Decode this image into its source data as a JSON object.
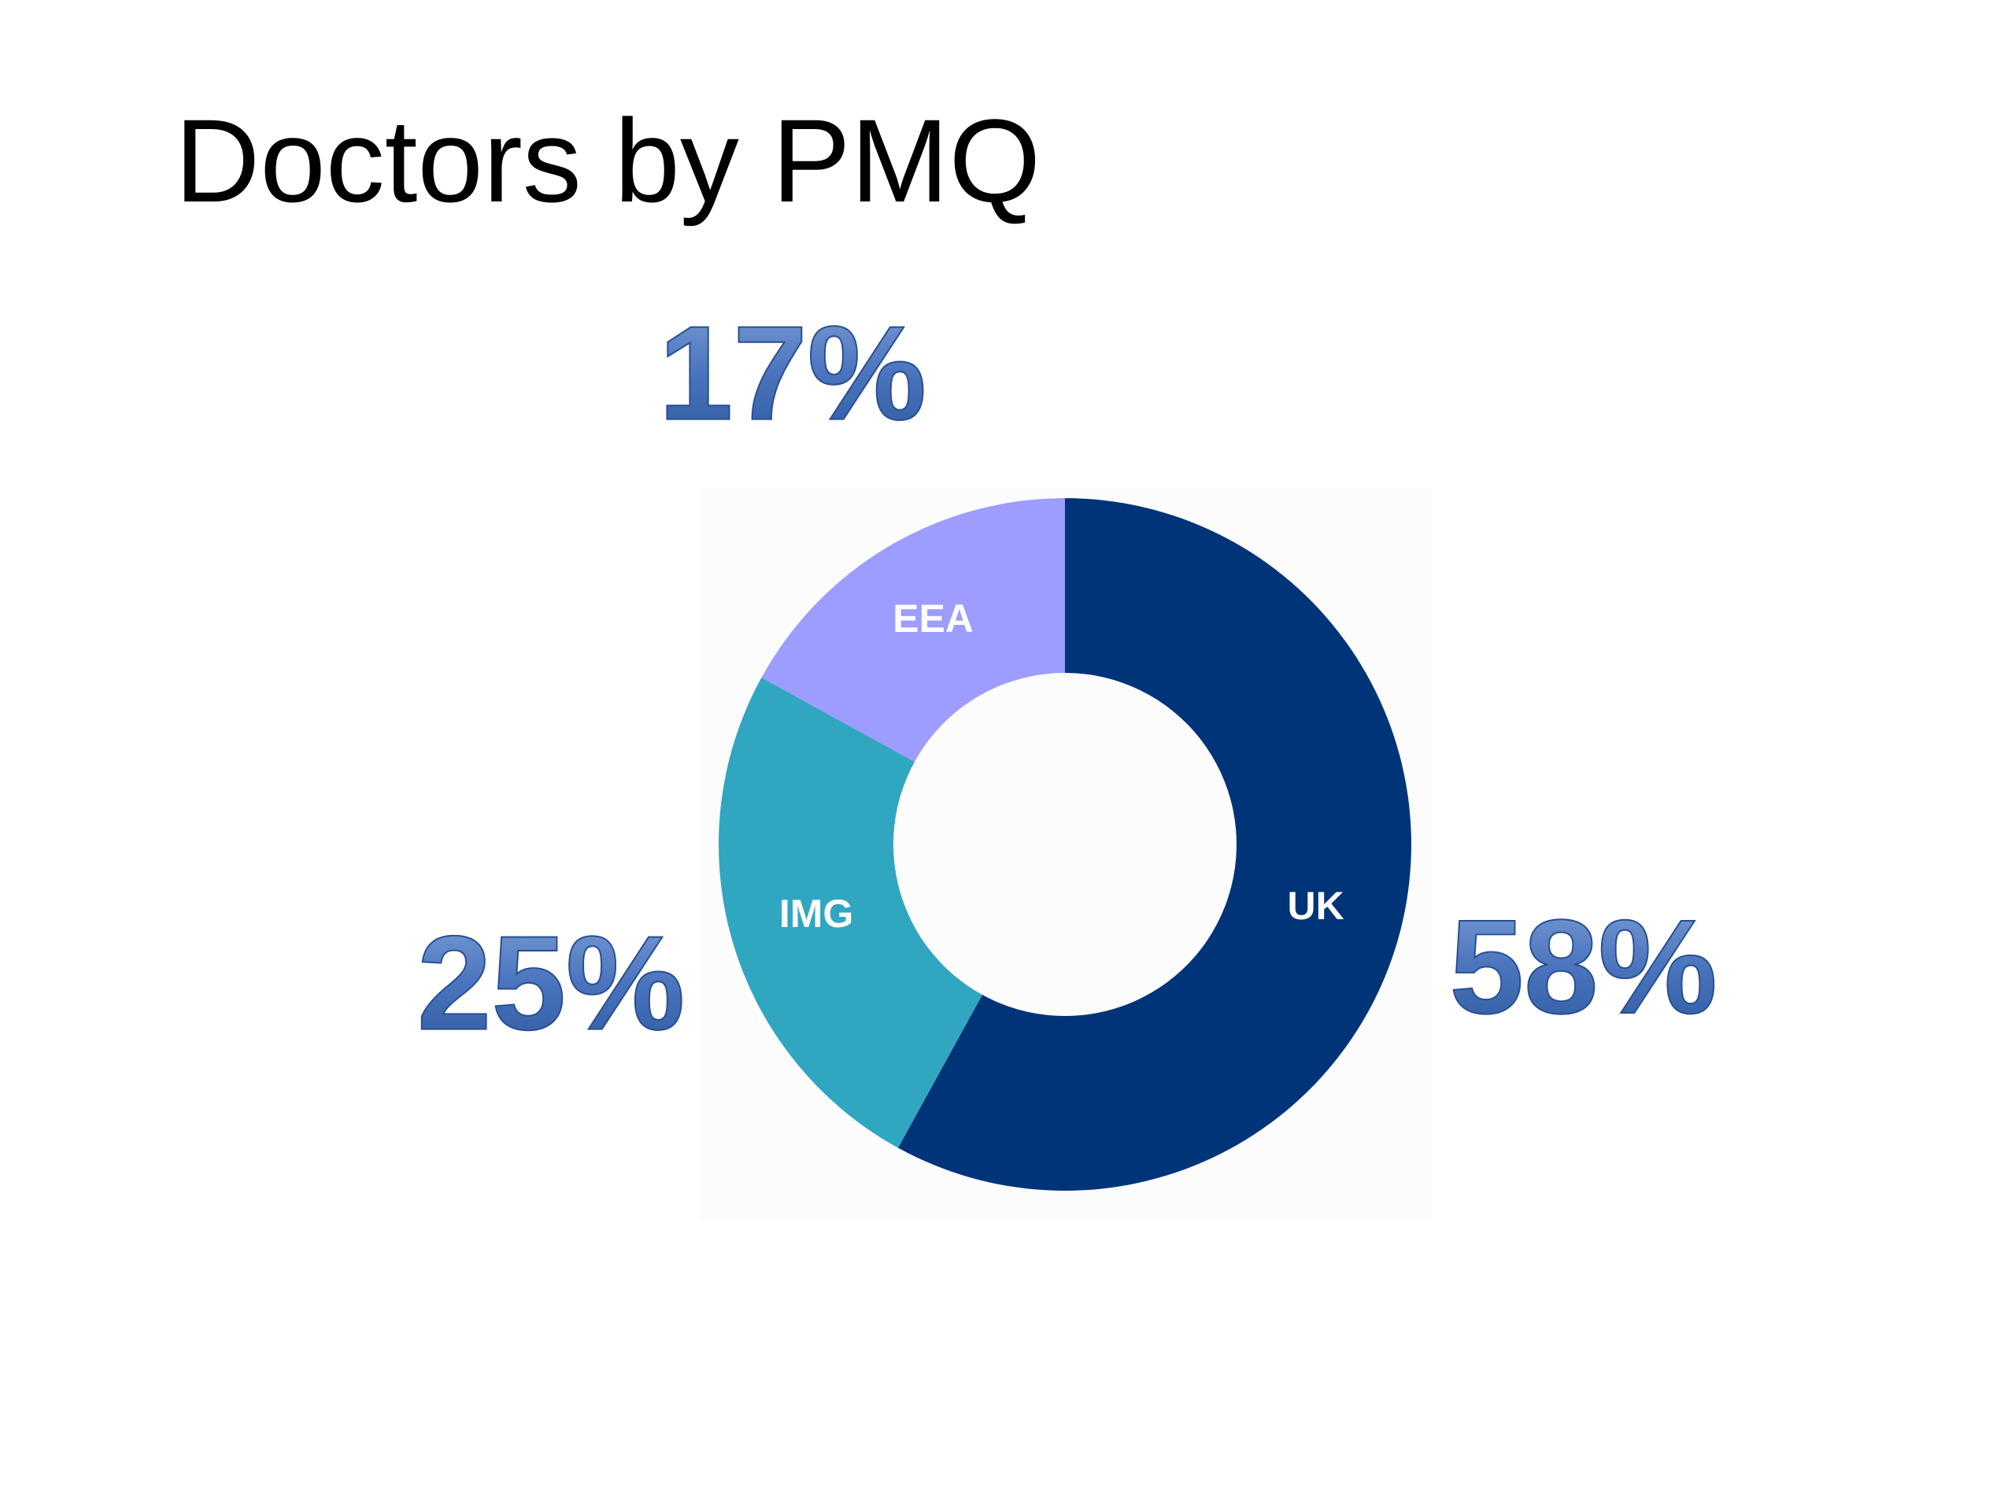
{
  "chart_data": {
    "type": "donut",
    "title": "Doctors by PMQ",
    "categories": [
      "UK",
      "IMG",
      "EEA"
    ],
    "values": [
      58,
      25,
      17
    ],
    "value_labels": [
      "58%",
      "25%",
      "17%"
    ],
    "colors": [
      "#003478",
      "#31a6c0",
      "#9d9cff"
    ]
  }
}
